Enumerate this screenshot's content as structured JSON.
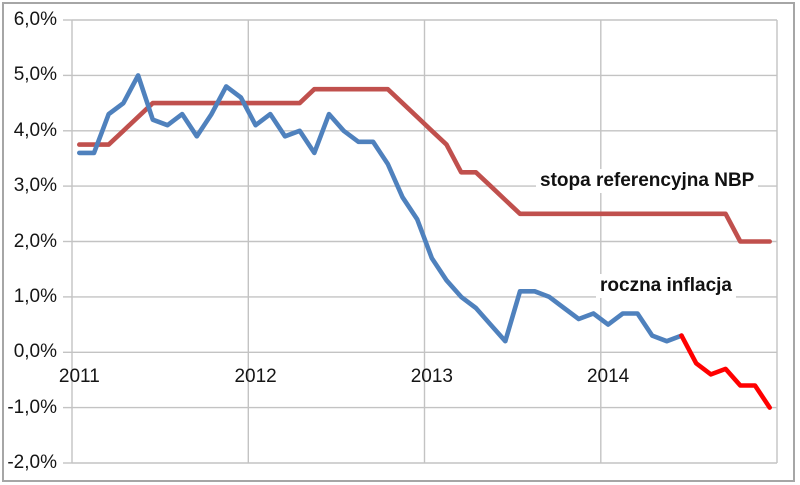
{
  "chart_data": {
    "type": "line",
    "title": "",
    "x": {
      "start": "2011-01",
      "step_months": 1,
      "count": 48
    },
    "x_tick_labels": [
      "2011",
      "2012",
      "2013",
      "2014"
    ],
    "ylim": [
      -2,
      6
    ],
    "y_ticks": [
      {
        "label": "6,0%",
        "value": 6
      },
      {
        "label": "5,0%",
        "value": 5
      },
      {
        "label": "4,0%",
        "value": 4
      },
      {
        "label": "3,0%",
        "value": 3
      },
      {
        "label": "2,0%",
        "value": 2
      },
      {
        "label": "1,0%",
        "value": 1
      },
      {
        "label": "0,0%",
        "value": 0
      },
      {
        "label": "-1,0%",
        "value": -1
      },
      {
        "label": "-2,0%",
        "value": -2
      }
    ],
    "grid": true,
    "legend_position": "inline-annotations",
    "colors": {
      "outer_border": "#a6a6a6",
      "gridline": "#c3c3c3",
      "tick": "#c3c3c3",
      "nbp_line": "#c0504d",
      "inflation_line": "#4f81bd",
      "deflation_line": "#ff0000",
      "text": "#111111"
    },
    "series": [
      {
        "id": "nbp-rate",
        "name": "stopa referencyjna NBP",
        "color": "#c0504d",
        "start_index": 0,
        "values": [
          3.75,
          3.75,
          3.75,
          4.0,
          4.25,
          4.5,
          4.5,
          4.5,
          4.5,
          4.5,
          4.5,
          4.5,
          4.5,
          4.5,
          4.5,
          4.5,
          4.75,
          4.75,
          4.75,
          4.75,
          4.75,
          4.75,
          4.5,
          4.25,
          4.0,
          3.75,
          3.25,
          3.25,
          3.0,
          2.75,
          2.5,
          2.5,
          2.5,
          2.5,
          2.5,
          2.5,
          2.5,
          2.5,
          2.5,
          2.5,
          2.5,
          2.5,
          2.5,
          2.5,
          2.5,
          2.0,
          2.0,
          2.0
        ]
      },
      {
        "id": "inflation",
        "name": "roczna inflacja",
        "color": "#4f81bd",
        "start_index": 0,
        "values": [
          3.6,
          3.6,
          4.3,
          4.5,
          5.0,
          4.2,
          4.1,
          4.3,
          3.9,
          4.3,
          4.8,
          4.6,
          4.1,
          4.3,
          3.9,
          4.0,
          3.6,
          4.3,
          4.0,
          3.8,
          3.8,
          3.4,
          2.8,
          2.4,
          1.7,
          1.3,
          1.0,
          0.8,
          0.5,
          0.2,
          1.1,
          1.1,
          1.0,
          0.8,
          0.6,
          0.7,
          0.5,
          0.7,
          0.7,
          0.3,
          0.2,
          0.3
        ]
      },
      {
        "id": "inflation-deflation-highlight",
        "name": "roczna inflacja (deflacja)",
        "color": "#ff0000",
        "start_index": 41,
        "values": [
          0.3,
          -0.2,
          -0.4,
          -0.3,
          -0.6,
          -0.6,
          -1.0
        ]
      }
    ],
    "annotations": [
      {
        "text": "stopa referencyjna NBP"
      },
      {
        "text": "roczna inflacja"
      }
    ]
  }
}
